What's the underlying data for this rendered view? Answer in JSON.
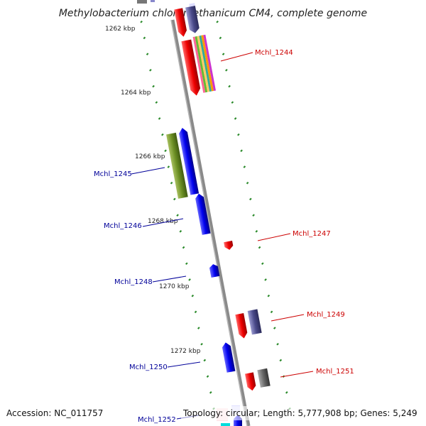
{
  "title": "Methylobacterium chloromethanicum CM4, complete genome",
  "footer": {
    "accession": "Accession: NC_011757",
    "topology": "Topology: circular; Length: 5,777,908 bp; Genes: 5,249"
  },
  "ticks": [
    "1262 kbp",
    "1264 kbp",
    "1266 kbp",
    "1268 kbp",
    "1270 kbp",
    "1272 kbp"
  ],
  "genes": [
    {
      "label": "Mchl_1244",
      "strand": "forward",
      "color": "#cc0000"
    },
    {
      "label": "Mchl_1245",
      "strand": "reverse",
      "color": "#000099"
    },
    {
      "label": "Mchl_1246",
      "strand": "reverse",
      "color": "#000099"
    },
    {
      "label": "Mchl_1247",
      "strand": "forward",
      "color": "#cc0000"
    },
    {
      "label": "Mchl_1248",
      "strand": "reverse",
      "color": "#000099"
    },
    {
      "label": "Mchl_1249",
      "strand": "forward",
      "color": "#cc0000"
    },
    {
      "label": "Mchl_1250",
      "strand": "reverse",
      "color": "#000099"
    },
    {
      "label": "Mchl_1251",
      "strand": "forward",
      "color": "#cc0000"
    },
    {
      "label": "Mchl_1252",
      "strand": "reverse",
      "color": "#000099"
    }
  ],
  "colors": {
    "forward_gene": "#ff0000",
    "reverse_gene": "#0000ee",
    "backbone": "#888888",
    "tick": "#2a8a2a",
    "cog_slate": "#4a4a8a",
    "cog_green": "#6b8e23",
    "cog_gray": "#666666"
  }
}
